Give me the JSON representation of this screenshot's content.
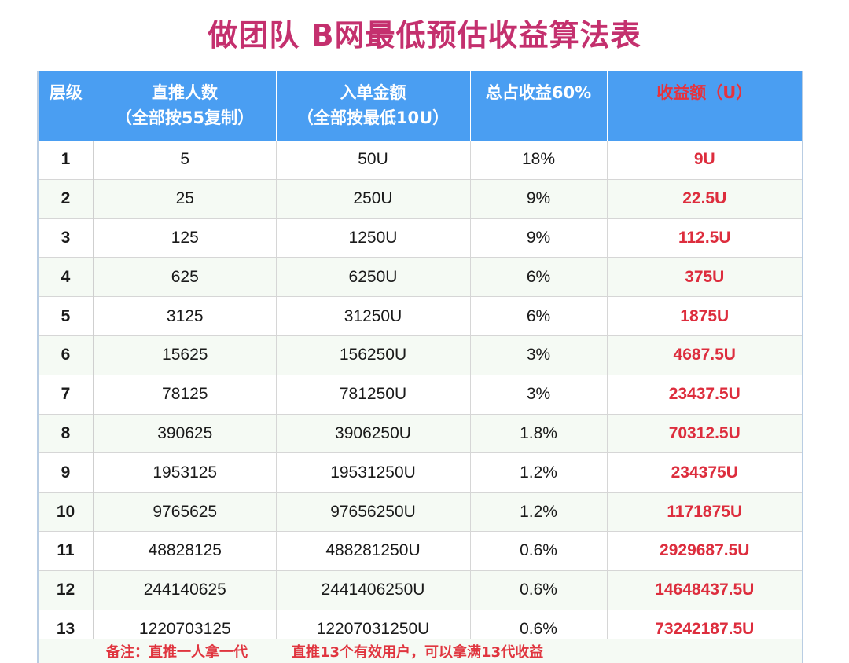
{
  "title": "做团队 B网最低预估收益算法表",
  "headers": {
    "layer": "层级",
    "direct_line1": "直推人数",
    "direct_line2": "（全部按55复制）",
    "amount_line1": "入单金额",
    "amount_line2": "（全部按最低10U）",
    "share": "总占收益60%",
    "profit": "收益额（U）"
  },
  "rows": [
    {
      "layer": "1",
      "direct": "5",
      "amount": "50U",
      "share": "18%",
      "profit": "9U"
    },
    {
      "layer": "2",
      "direct": "25",
      "amount": "250U",
      "share": "9%",
      "profit": "22.5U"
    },
    {
      "layer": "3",
      "direct": "125",
      "amount": "1250U",
      "share": "9%",
      "profit": "112.5U"
    },
    {
      "layer": "4",
      "direct": "625",
      "amount": "6250U",
      "share": "6%",
      "profit": "375U"
    },
    {
      "layer": "5",
      "direct": "3125",
      "amount": "31250U",
      "share": "6%",
      "profit": "1875U"
    },
    {
      "layer": "6",
      "direct": "15625",
      "amount": "156250U",
      "share": "3%",
      "profit": "4687.5U"
    },
    {
      "layer": "7",
      "direct": "78125",
      "amount": "781250U",
      "share": "3%",
      "profit": "23437.5U"
    },
    {
      "layer": "8",
      "direct": "390625",
      "amount": "3906250U",
      "share": "1.8%",
      "profit": "70312.5U"
    },
    {
      "layer": "9",
      "direct": "1953125",
      "amount": "19531250U",
      "share": "1.2%",
      "profit": "234375U"
    },
    {
      "layer": "10",
      "direct": "9765625",
      "amount": "97656250U",
      "share": "1.2%",
      "profit": "1171875U"
    },
    {
      "layer": "11",
      "direct": "48828125",
      "amount": "488281250U",
      "share": "0.6%",
      "profit": "2929687.5U"
    },
    {
      "layer": "12",
      "direct": "244140625",
      "amount": "2441406250U",
      "share": "0.6%",
      "profit": "14648437.5U"
    },
    {
      "layer": "13",
      "direct": "1220703125",
      "amount": "12207031250U",
      "share": "0.6%",
      "profit": "73242187.5U"
    }
  ],
  "note": {
    "part1": "备注：直推一人拿一代",
    "part2": "直推13个有效用户，可以拿满13代收益"
  },
  "colors": {
    "title": "#c4306e",
    "header_bg": "#4a9ef2",
    "profit": "#dd2d3d"
  }
}
